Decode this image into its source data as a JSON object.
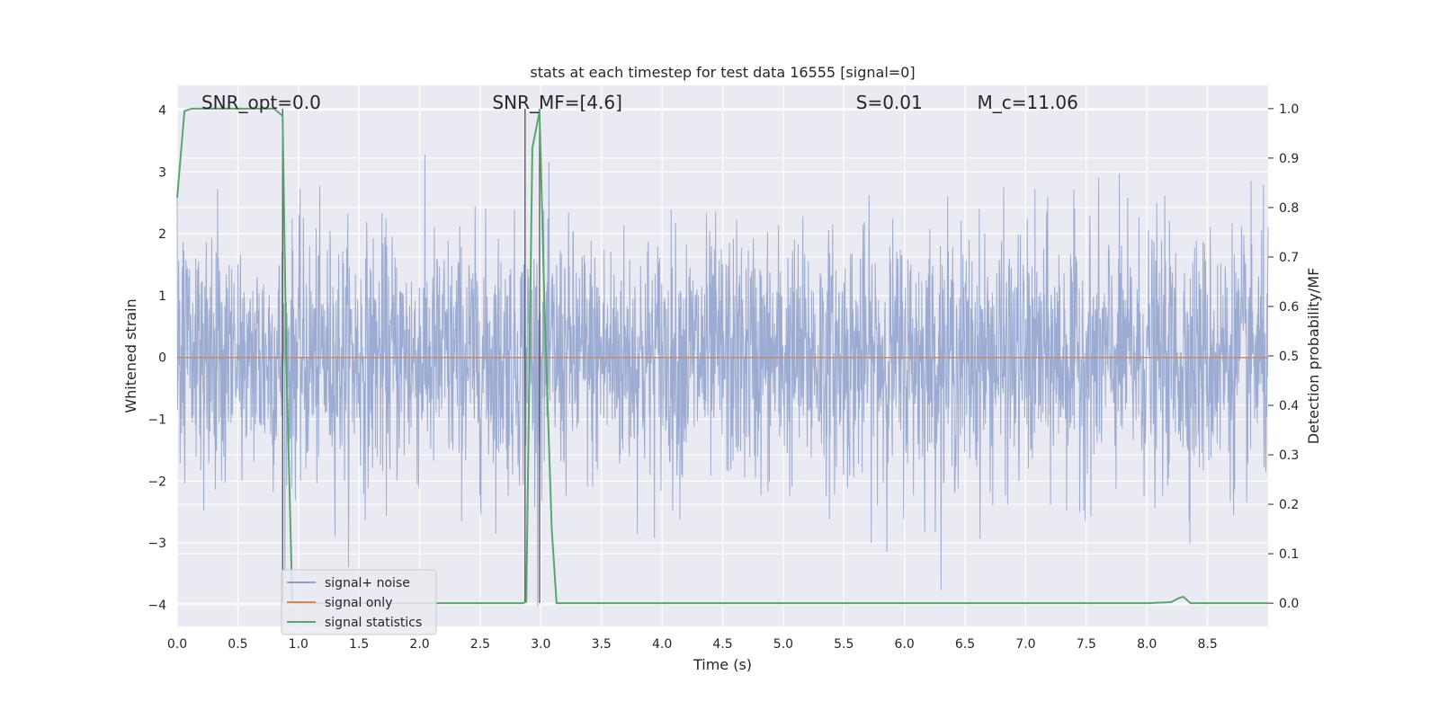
{
  "chart_data": {
    "type": "line",
    "title": "stats at each timestep for test data 16555 [signal=0]",
    "xlabel": "Time (s)",
    "ylabel": "Whitened strain",
    "y2label": "Detection probability/MF",
    "xlim": [
      0.0,
      9.0
    ],
    "ylim": [
      -4.35,
      4.4
    ],
    "y2lim": [
      -0.047,
      1.047
    ],
    "xticks": [
      0.0,
      0.5,
      1.0,
      1.5,
      2.0,
      2.5,
      3.0,
      3.5,
      4.0,
      4.5,
      5.0,
      5.5,
      6.0,
      6.5,
      7.0,
      7.5,
      8.0,
      8.5
    ],
    "xtick_labels": [
      "0.0",
      "0.5",
      "1.0",
      "1.5",
      "2.0",
      "2.5",
      "3.0",
      "3.5",
      "4.0",
      "4.5",
      "5.0",
      "5.5",
      "6.0",
      "6.5",
      "7.0",
      "7.5",
      "8.0",
      "8.5"
    ],
    "yticks": [
      4,
      3,
      2,
      1,
      0,
      -1,
      -2,
      -3,
      -4
    ],
    "ytick_labels": [
      "4",
      "3",
      "2",
      "1",
      "0",
      "−1",
      "−2",
      "−3",
      "−4"
    ],
    "y2ticks": [
      1.0,
      0.9,
      0.8,
      0.7,
      0.6,
      0.5,
      0.4,
      0.3,
      0.2,
      0.1,
      0.0
    ],
    "y2tick_labels": [
      "1.0",
      "0.9",
      "0.8",
      "0.7",
      "0.6",
      "0.5",
      "0.4",
      "0.3",
      "0.2",
      "0.1",
      "0.0"
    ],
    "grid": true,
    "legend_position": "bottom-left",
    "annotations": [
      {
        "text": "SNR_opt=0.0",
        "x": 0.2
      },
      {
        "text": "SNR_MF=[4.6]",
        "x": 2.6
      },
      {
        "text": "S=0.01",
        "x": 5.6
      },
      {
        "text": "M_c=11.06",
        "x": 6.6
      }
    ],
    "vlines": [
      0.87,
      2.87,
      2.99
    ],
    "series": [
      {
        "name": "signal+ noise",
        "axis": "left",
        "color": "#8da0cb",
        "kind": "noise",
        "amplitude": 1.0,
        "n_samples": 3000
      },
      {
        "name": "signal only",
        "axis": "left",
        "color": "#dd8452",
        "x": [
          0.0,
          9.0
        ],
        "y": [
          0.0,
          0.0
        ]
      },
      {
        "name": "signal statistics",
        "axis": "right",
        "color": "#55a868",
        "x": [
          0.0,
          0.06,
          0.12,
          0.2,
          0.4,
          0.6,
          0.8,
          0.87,
          0.9,
          0.95,
          1.0,
          1.5,
          2.0,
          2.5,
          2.85,
          2.88,
          2.93,
          2.99,
          3.03,
          3.09,
          3.13,
          3.3,
          4.0,
          5.0,
          6.0,
          7.0,
          8.0,
          8.2,
          8.26,
          8.3,
          8.36,
          8.5,
          9.0
        ],
        "y": [
          0.82,
          0.995,
          1.0,
          1.0,
          1.0,
          1.0,
          1.0,
          0.985,
          0.5,
          0.0,
          0.0,
          0.0,
          0.0,
          0.0,
          0.0,
          0.003,
          0.92,
          0.995,
          0.6,
          0.15,
          0.0,
          0.0,
          0.0,
          0.0,
          0.0,
          0.0,
          0.0,
          0.002,
          0.01,
          0.013,
          0.0,
          0.0,
          0.0
        ]
      }
    ]
  }
}
